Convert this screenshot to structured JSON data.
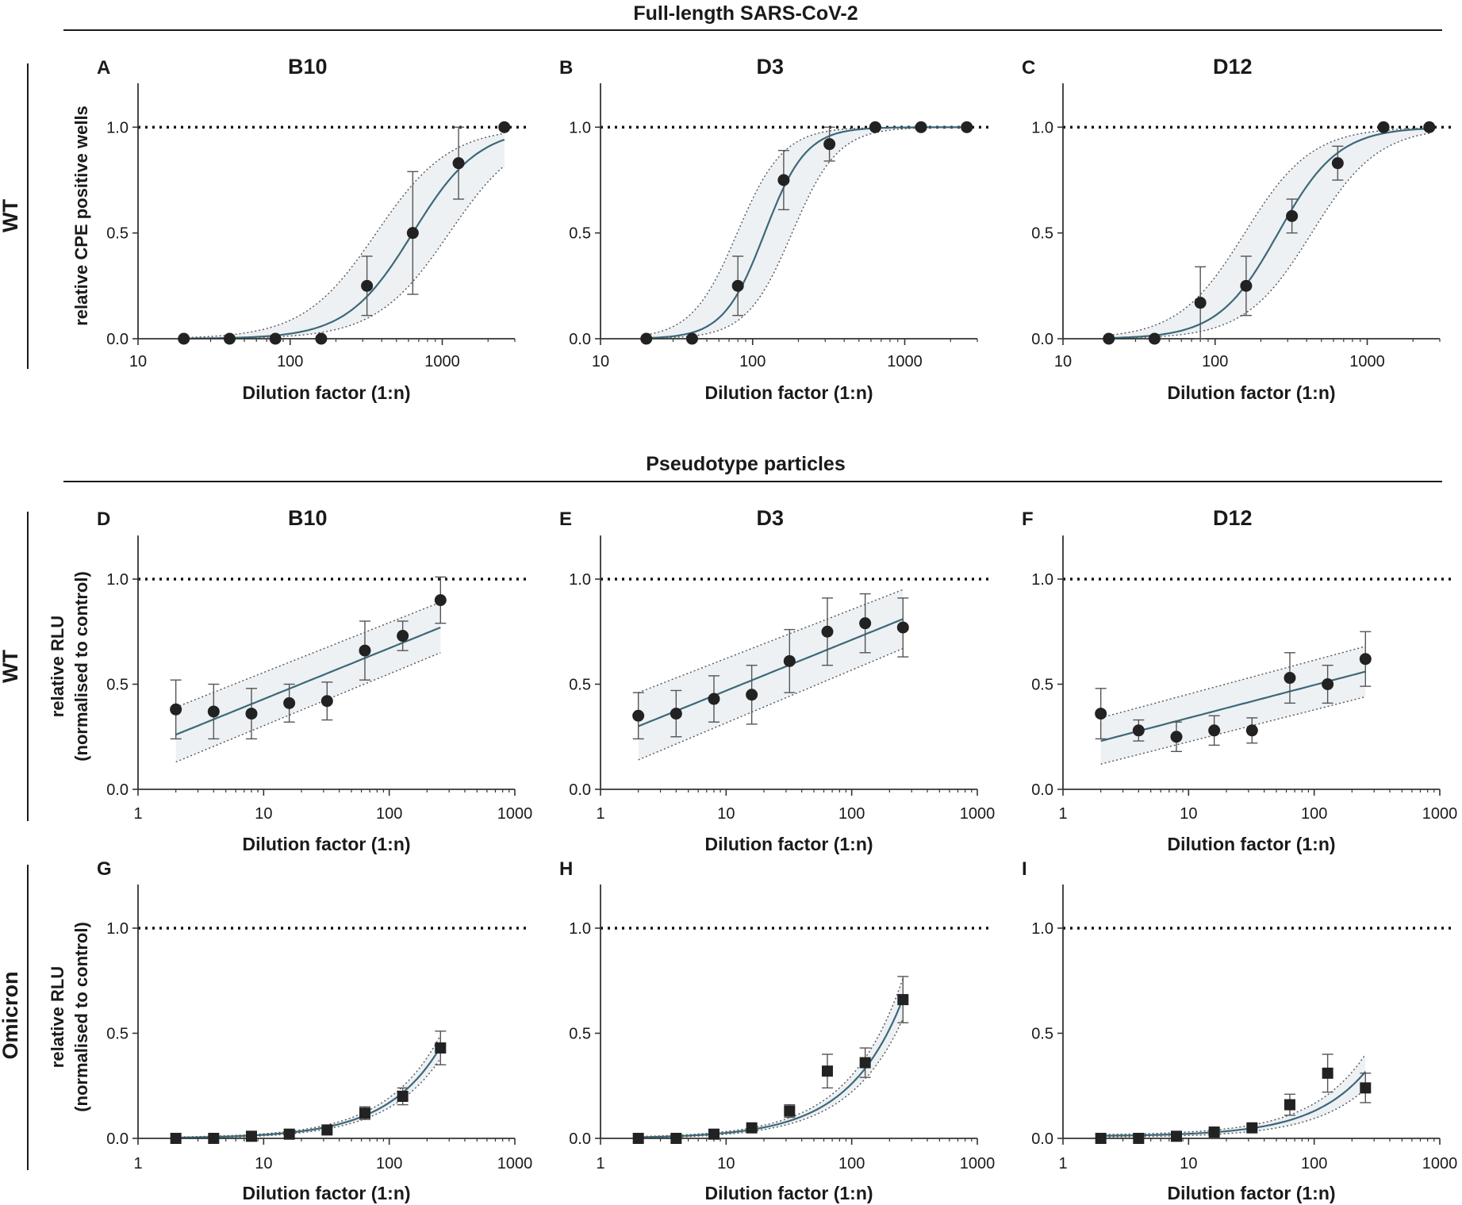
{
  "sections": [
    {
      "title": "Full-length SARS-CoV-2"
    },
    {
      "title": "Pseudotype particles"
    }
  ],
  "row_labels": [
    "WT",
    "WT",
    "Omicron"
  ],
  "ylabels": [
    [
      "relative CPE positive wells"
    ],
    [
      "relative RLU",
      "(normalised to control)"
    ],
    [
      "relative RLU",
      "(normalised to control)"
    ]
  ],
  "colors": {
    "fit": "#3d6878",
    "band": "#edf1f4",
    "marker": "#222222",
    "error": "#555555",
    "axis": "#333333"
  },
  "chart_data": [
    {
      "id": "A",
      "letter": "A",
      "title": "B10",
      "type": "scatter",
      "row": 0,
      "col": 0,
      "xlabel": "Dilution factor (1:n)",
      "xscale": "log",
      "xlim": [
        10,
        3000
      ],
      "xticks": [
        10,
        100,
        1000
      ],
      "xtick_labels": [
        "10",
        "100",
        "1000"
      ],
      "ylim": [
        0,
        1.2
      ],
      "yticks": [
        0,
        0.5,
        1.0
      ],
      "ytick_labels": [
        "0.0",
        "0.5",
        "1.0"
      ],
      "reference_line": 1.0,
      "marker": "circle",
      "points": [
        {
          "x": 20,
          "y": 0.0,
          "err": 0
        },
        {
          "x": 40,
          "y": 0.0,
          "err": 0
        },
        {
          "x": 80,
          "y": 0.0,
          "err": 0
        },
        {
          "x": 160,
          "y": 0.0,
          "err": 0
        },
        {
          "x": 320,
          "y": 0.25,
          "err": 0.14
        },
        {
          "x": 640,
          "y": 0.5,
          "err": 0.29
        },
        {
          "x": 1280,
          "y": 0.83,
          "err": 0.17
        },
        {
          "x": 2560,
          "y": 1.0,
          "err": 0
        }
      ],
      "fit": {
        "model": "sigmoid",
        "ec50": 640,
        "hill": 2.0,
        "ci_shift": 0.12,
        "x_range": [
          20,
          2560
        ]
      }
    },
    {
      "id": "B",
      "letter": "B",
      "title": "D3",
      "type": "scatter",
      "row": 0,
      "col": 1,
      "xlabel": "Dilution factor (1:n)",
      "xscale": "log",
      "xlim": [
        10,
        3000
      ],
      "xticks": [
        10,
        100,
        1000
      ],
      "xtick_labels": [
        "10",
        "100",
        "1000"
      ],
      "ylim": [
        0,
        1.2
      ],
      "yticks": [
        0,
        0.5,
        1.0
      ],
      "ytick_labels": [
        "0.0",
        "0.5",
        "1.0"
      ],
      "reference_line": 1.0,
      "marker": "circle",
      "points": [
        {
          "x": 20,
          "y": 0.0,
          "err": 0
        },
        {
          "x": 40,
          "y": 0.0,
          "err": 0
        },
        {
          "x": 80,
          "y": 0.25,
          "err": 0.14
        },
        {
          "x": 160,
          "y": 0.75,
          "err": 0.14
        },
        {
          "x": 320,
          "y": 0.92,
          "err": 0.08
        },
        {
          "x": 640,
          "y": 1.0,
          "err": 0
        },
        {
          "x": 1280,
          "y": 1.0,
          "err": 0
        },
        {
          "x": 2560,
          "y": 1.0,
          "err": 0
        }
      ],
      "fit": {
        "model": "sigmoid",
        "ec50": 120,
        "hill": 3.2,
        "ci_shift": 0.09,
        "x_range": [
          20,
          2560
        ]
      }
    },
    {
      "id": "C",
      "letter": "C",
      "title": "D12",
      "type": "scatter",
      "row": 0,
      "col": 2,
      "xlabel": "Dilution factor (1:n)",
      "xscale": "log",
      "xlim": [
        10,
        3000
      ],
      "xticks": [
        10,
        100,
        1000
      ],
      "xtick_labels": [
        "10",
        "100",
        "1000"
      ],
      "ylim": [
        0,
        1.2
      ],
      "yticks": [
        0,
        0.5,
        1.0
      ],
      "ytick_labels": [
        "0.0",
        "0.5",
        "1.0"
      ],
      "reference_line": 1.0,
      "marker": "circle",
      "points": [
        {
          "x": 20,
          "y": 0.0,
          "err": 0
        },
        {
          "x": 40,
          "y": 0.0,
          "err": 0
        },
        {
          "x": 80,
          "y": 0.17,
          "err": 0.17
        },
        {
          "x": 160,
          "y": 0.25,
          "err": 0.14
        },
        {
          "x": 320,
          "y": 0.58,
          "err": 0.08
        },
        {
          "x": 640,
          "y": 0.83,
          "err": 0.08
        },
        {
          "x": 1280,
          "y": 1.0,
          "err": 0
        },
        {
          "x": 2560,
          "y": 1.0,
          "err": 0
        }
      ],
      "fit": {
        "model": "sigmoid",
        "ec50": 260,
        "hill": 2.2,
        "ci_shift": 0.11,
        "x_range": [
          20,
          2560
        ]
      }
    },
    {
      "id": "D",
      "letter": "D",
      "title": "B10",
      "type": "scatter",
      "row": 1,
      "col": 0,
      "xlabel": "Dilution factor (1:n)",
      "xscale": "log",
      "xlim": [
        1,
        1000
      ],
      "xticks": [
        1,
        10,
        100,
        1000
      ],
      "xtick_labels": [
        "1",
        "10",
        "100",
        "1000"
      ],
      "ylim": [
        0,
        1.2
      ],
      "yticks": [
        0,
        0.5,
        1.0
      ],
      "ytick_labels": [
        "0.0",
        "0.5",
        "1.0"
      ],
      "reference_line": 1.0,
      "marker": "circle",
      "points": [
        {
          "x": 2,
          "y": 0.38,
          "err": 0.14
        },
        {
          "x": 4,
          "y": 0.37,
          "err": 0.13
        },
        {
          "x": 8,
          "y": 0.36,
          "err": 0.12
        },
        {
          "x": 16,
          "y": 0.41,
          "err": 0.09
        },
        {
          "x": 32,
          "y": 0.42,
          "err": 0.09
        },
        {
          "x": 64,
          "y": 0.66,
          "err": 0.14
        },
        {
          "x": 128,
          "y": 0.73,
          "err": 0.07
        },
        {
          "x": 256,
          "y": 0.9,
          "err": 0.11
        }
      ],
      "fit": {
        "model": "loglinear",
        "y_start": 0.26,
        "y_end": 0.77,
        "band_start": 0.13,
        "band_end": 0.12,
        "x_range": [
          2,
          256
        ]
      }
    },
    {
      "id": "E",
      "letter": "E",
      "title": "D3",
      "type": "scatter",
      "row": 1,
      "col": 1,
      "xlabel": "Dilution factor (1:n)",
      "xscale": "log",
      "xlim": [
        1,
        1000
      ],
      "xticks": [
        1,
        10,
        100,
        1000
      ],
      "xtick_labels": [
        "1",
        "10",
        "100",
        "1000"
      ],
      "ylim": [
        0,
        1.2
      ],
      "yticks": [
        0,
        0.5,
        1.0
      ],
      "ytick_labels": [
        "0.0",
        "0.5",
        "1.0"
      ],
      "reference_line": 1.0,
      "marker": "circle",
      "points": [
        {
          "x": 2,
          "y": 0.35,
          "err": 0.11
        },
        {
          "x": 4,
          "y": 0.36,
          "err": 0.11
        },
        {
          "x": 8,
          "y": 0.43,
          "err": 0.11
        },
        {
          "x": 16,
          "y": 0.45,
          "err": 0.14
        },
        {
          "x": 32,
          "y": 0.61,
          "err": 0.15
        },
        {
          "x": 64,
          "y": 0.75,
          "err": 0.16
        },
        {
          "x": 128,
          "y": 0.79,
          "err": 0.14
        },
        {
          "x": 256,
          "y": 0.77,
          "err": 0.14
        }
      ],
      "fit": {
        "model": "loglinear",
        "y_start": 0.3,
        "y_end": 0.81,
        "band_start": 0.16,
        "band_end": 0.14,
        "x_range": [
          2,
          256
        ]
      }
    },
    {
      "id": "F",
      "letter": "F",
      "title": "D12",
      "type": "scatter",
      "row": 1,
      "col": 2,
      "xlabel": "Dilution factor (1:n)",
      "xscale": "log",
      "xlim": [
        1,
        1000
      ],
      "xticks": [
        1,
        10,
        100,
        1000
      ],
      "xtick_labels": [
        "1",
        "10",
        "100",
        "1000"
      ],
      "ylim": [
        0,
        1.2
      ],
      "yticks": [
        0,
        0.5,
        1.0
      ],
      "ytick_labels": [
        "0.0",
        "0.5",
        "1.0"
      ],
      "reference_line": 1.0,
      "marker": "circle",
      "points": [
        {
          "x": 2,
          "y": 0.36,
          "err": 0.12
        },
        {
          "x": 4,
          "y": 0.28,
          "err": 0.05
        },
        {
          "x": 8,
          "y": 0.25,
          "err": 0.07
        },
        {
          "x": 16,
          "y": 0.28,
          "err": 0.07
        },
        {
          "x": 32,
          "y": 0.28,
          "err": 0.06
        },
        {
          "x": 64,
          "y": 0.53,
          "err": 0.12
        },
        {
          "x": 128,
          "y": 0.5,
          "err": 0.09
        },
        {
          "x": 256,
          "y": 0.62,
          "err": 0.13
        }
      ],
      "fit": {
        "model": "loglinear",
        "y_start": 0.23,
        "y_end": 0.56,
        "band_start": 0.11,
        "band_end": 0.12,
        "x_range": [
          2,
          256
        ]
      }
    },
    {
      "id": "G",
      "letter": "G",
      "title": "",
      "type": "scatter",
      "row": 2,
      "col": 0,
      "xlabel": "Dilution factor (1:n)",
      "xscale": "log",
      "xlim": [
        1,
        1000
      ],
      "xticks": [
        1,
        10,
        100,
        1000
      ],
      "xtick_labels": [
        "1",
        "10",
        "100",
        "1000"
      ],
      "ylim": [
        0,
        1.2
      ],
      "yticks": [
        0,
        0.5,
        1.0
      ],
      "ytick_labels": [
        "0.0",
        "0.5",
        "1.0"
      ],
      "reference_line": 1.0,
      "marker": "square",
      "points": [
        {
          "x": 2,
          "y": 0.0,
          "err": 0
        },
        {
          "x": 4,
          "y": 0.0,
          "err": 0
        },
        {
          "x": 8,
          "y": 0.01,
          "err": 0
        },
        {
          "x": 16,
          "y": 0.02,
          "err": 0
        },
        {
          "x": 32,
          "y": 0.04,
          "err": 0.01
        },
        {
          "x": 64,
          "y": 0.12,
          "err": 0.03
        },
        {
          "x": 128,
          "y": 0.2,
          "err": 0.04
        },
        {
          "x": 256,
          "y": 0.43,
          "err": 0.08
        }
      ],
      "fit": {
        "model": "linear",
        "slope": 0.0017,
        "band_frac": 0.12,
        "x_range": [
          2,
          256
        ]
      }
    },
    {
      "id": "H",
      "letter": "H",
      "title": "",
      "type": "scatter",
      "row": 2,
      "col": 1,
      "xlabel": "Dilution factor (1:n)",
      "xscale": "log",
      "xlim": [
        1,
        1000
      ],
      "xticks": [
        1,
        10,
        100,
        1000
      ],
      "xtick_labels": [
        "1",
        "10",
        "100",
        "1000"
      ],
      "ylim": [
        0,
        1.2
      ],
      "yticks": [
        0,
        0.5,
        1.0
      ],
      "ytick_labels": [
        "0.0",
        "0.5",
        "1.0"
      ],
      "reference_line": 1.0,
      "marker": "square",
      "points": [
        {
          "x": 2,
          "y": 0.0,
          "err": 0
        },
        {
          "x": 4,
          "y": 0.0,
          "err": 0
        },
        {
          "x": 8,
          "y": 0.02,
          "err": 0
        },
        {
          "x": 16,
          "y": 0.05,
          "err": 0
        },
        {
          "x": 32,
          "y": 0.13,
          "err": 0.03
        },
        {
          "x": 64,
          "y": 0.32,
          "err": 0.08
        },
        {
          "x": 128,
          "y": 0.36,
          "err": 0.07
        },
        {
          "x": 256,
          "y": 0.66,
          "err": 0.11
        }
      ],
      "fit": {
        "model": "linear",
        "slope": 0.0026,
        "band_frac": 0.14,
        "x_range": [
          2,
          256
        ]
      }
    },
    {
      "id": "I",
      "letter": "I",
      "title": "",
      "type": "scatter",
      "row": 2,
      "col": 2,
      "xlabel": "Dilution factor (1:n)",
      "xscale": "log",
      "xlim": [
        1,
        1000
      ],
      "xticks": [
        1,
        10,
        100,
        1000
      ],
      "xtick_labels": [
        "1",
        "10",
        "100",
        "1000"
      ],
      "ylim": [
        0,
        1.2
      ],
      "yticks": [
        0,
        0.5,
        1.0
      ],
      "ytick_labels": [
        "0.0",
        "0.5",
        "1.0"
      ],
      "reference_line": 1.0,
      "marker": "square",
      "points": [
        {
          "x": 2,
          "y": 0.0,
          "err": 0
        },
        {
          "x": 4,
          "y": 0.0,
          "err": 0
        },
        {
          "x": 8,
          "y": 0.01,
          "err": 0
        },
        {
          "x": 16,
          "y": 0.03,
          "err": 0
        },
        {
          "x": 32,
          "y": 0.05,
          "err": 0
        },
        {
          "x": 64,
          "y": 0.16,
          "err": 0.05
        },
        {
          "x": 128,
          "y": 0.31,
          "err": 0.09
        },
        {
          "x": 256,
          "y": 0.24,
          "err": 0.07
        }
      ],
      "fit": {
        "model": "powerlinear",
        "a": 0.01,
        "b": 0.0012,
        "band_frac": 0.25,
        "x_range": [
          2,
          256
        ]
      }
    }
  ]
}
